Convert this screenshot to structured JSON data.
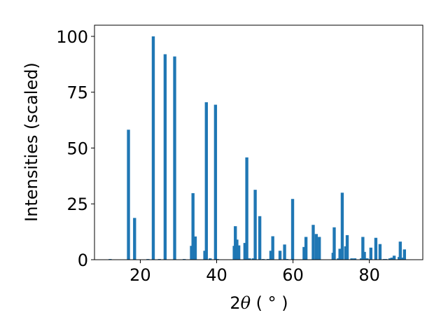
{
  "chart_data": {
    "type": "bar",
    "xlabel": "2θ (°)",
    "xlabel_parts": {
      "prefix": "2",
      "symbol": "θ",
      "suffix": " ( ° )"
    },
    "ylabel": "Intensities (scaled)",
    "xlim": [
      8,
      94
    ],
    "ylim": [
      0,
      105
    ],
    "xticks": [
      20,
      40,
      60,
      80
    ],
    "yticks": [
      0,
      25,
      50,
      75,
      100
    ],
    "grid": false,
    "bar_color": "#1f77b4",
    "bar_width": 0.8,
    "x": [
      12.1,
      16.9,
      18.5,
      22.0,
      23.4,
      25.0,
      26.5,
      29.0,
      31.5,
      33.4,
      33.8,
      34.4,
      36.9,
      37.3,
      38.3,
      39.7,
      40.2,
      44.6,
      44.9,
      45.3,
      45.8,
      47.4,
      47.9,
      48.6,
      49.6,
      50.1,
      51.3,
      52.2,
      53.5,
      54.2,
      54.7,
      56.6,
      57.8,
      58.4,
      59.9,
      62.9,
      63.4,
      65.3,
      66.1,
      66.9,
      70.5,
      70.8,
      71.9,
      72.3,
      72.9,
      73.8,
      74.2,
      75.4,
      76.2,
      77.9,
      78.3,
      78.7,
      79.4,
      80.4,
      81.7,
      82.8,
      83.9,
      84.3,
      85.4,
      85.9,
      86.5,
      87.8,
      88.1,
      88.7,
      89.2
    ],
    "values": [
      0.3,
      58.2,
      18.7,
      0.3,
      100.0,
      0.3,
      92.0,
      91.0,
      0.3,
      6.2,
      29.8,
      10.4,
      4.0,
      70.5,
      0.6,
      69.4,
      0.3,
      6.2,
      15.0,
      9.0,
      6.4,
      7.5,
      45.8,
      0.6,
      0.6,
      31.3,
      19.5,
      0.3,
      0.3,
      4.0,
      10.5,
      4.0,
      6.8,
      0.3,
      27.2,
      5.7,
      10.2,
      15.6,
      11.5,
      10.2,
      3.1,
      14.5,
      0.6,
      4.9,
      30.0,
      6.0,
      11.0,
      0.6,
      0.6,
      0.6,
      10.2,
      3.5,
      0.6,
      5.4,
      9.8,
      7.0,
      0.3,
      0.3,
      0.6,
      0.9,
      1.8,
      1.2,
      8.1,
      0.9,
      4.6
    ]
  }
}
